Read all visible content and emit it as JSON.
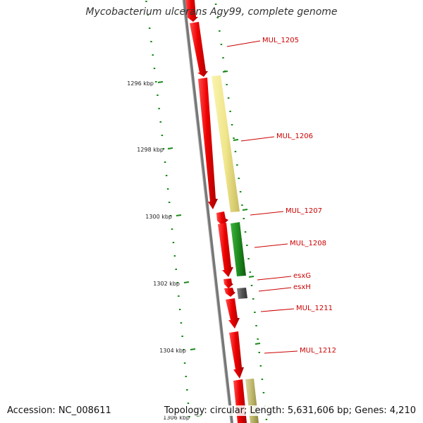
{
  "title": "Mycobacterium ulcerans Agy99, complete genome",
  "footer": {
    "accession": "Accession: NC_008611",
    "summary": "Topology: circular; Length: 5,631,606 bp; Genes: 4,210"
  },
  "ticks": [
    "1296 kbp",
    "1298 kbp",
    "1300 kbp",
    "1302 kbp",
    "1304 kbp",
    "1306 kbp"
  ],
  "gene_labels": [
    "MUL_1205",
    "MUL_1206",
    "MUL_1207",
    "MUL_1208",
    "esxG",
    "esxH",
    "MUL_1211",
    "MUL_1212"
  ],
  "colors": {
    "forward_red": "#ee0000",
    "reverse_yellow": "#f0e68c",
    "reverse_green": "#1e8c1e",
    "reverse_gray": "#555555",
    "reverse_khaki": "#bdb76b",
    "backbone": "#777777",
    "tick_green": "#1a8a1a",
    "label_red": "#cc0000"
  }
}
